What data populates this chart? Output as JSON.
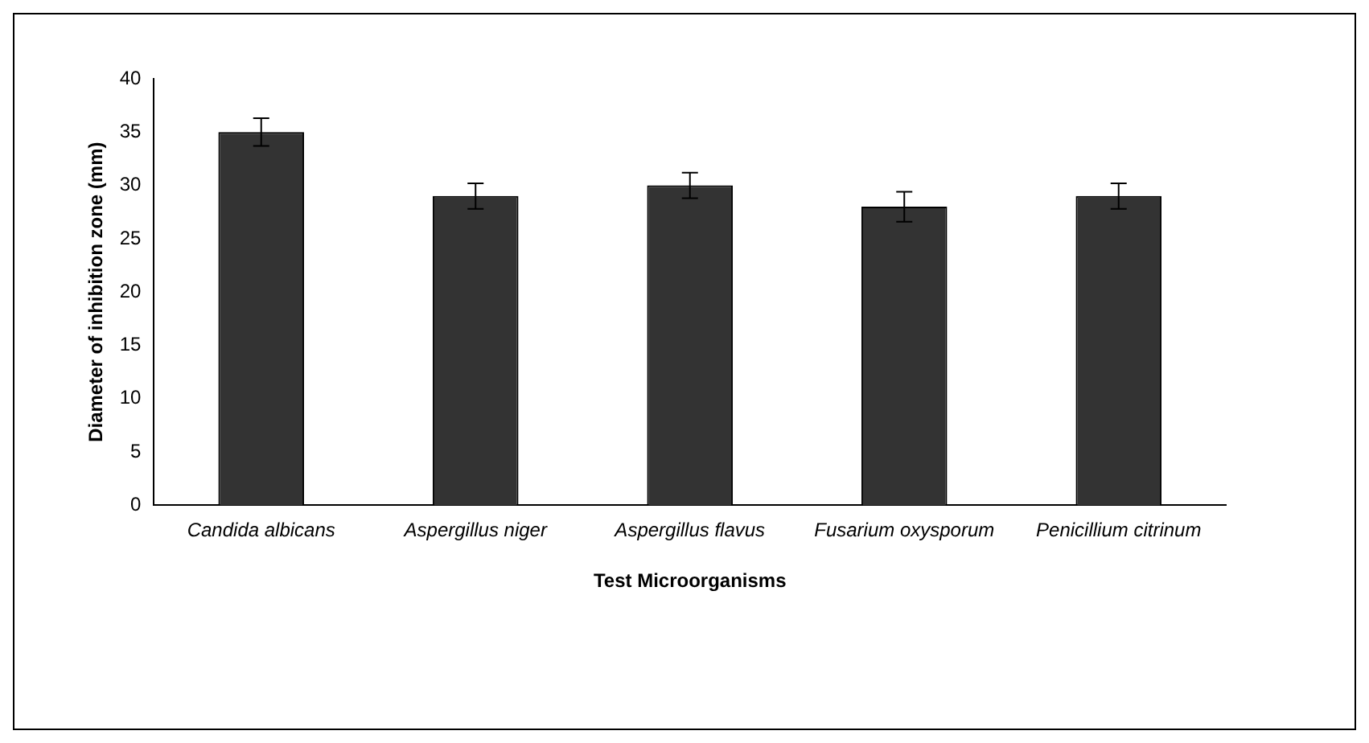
{
  "chart_data": {
    "type": "bar",
    "xlabel": "Test Microorganisms",
    "ylabel": "Diameter of inhibition zone (mm)",
    "categories": [
      "Candida albicans",
      "Aspergillus niger",
      "Aspergillus flavus",
      "Fusarium oxysporum",
      "Penicillium citrinum"
    ],
    "values": [
      35,
      29,
      30,
      28,
      29
    ],
    "errors": [
      1.3,
      1.2,
      1.2,
      1.4,
      1.2
    ],
    "color": "#333333",
    "ylim": [
      0,
      40
    ],
    "yticks": [
      0,
      5,
      10,
      15,
      20,
      25,
      30,
      35,
      40
    ],
    "grid": false,
    "legend": false
  }
}
